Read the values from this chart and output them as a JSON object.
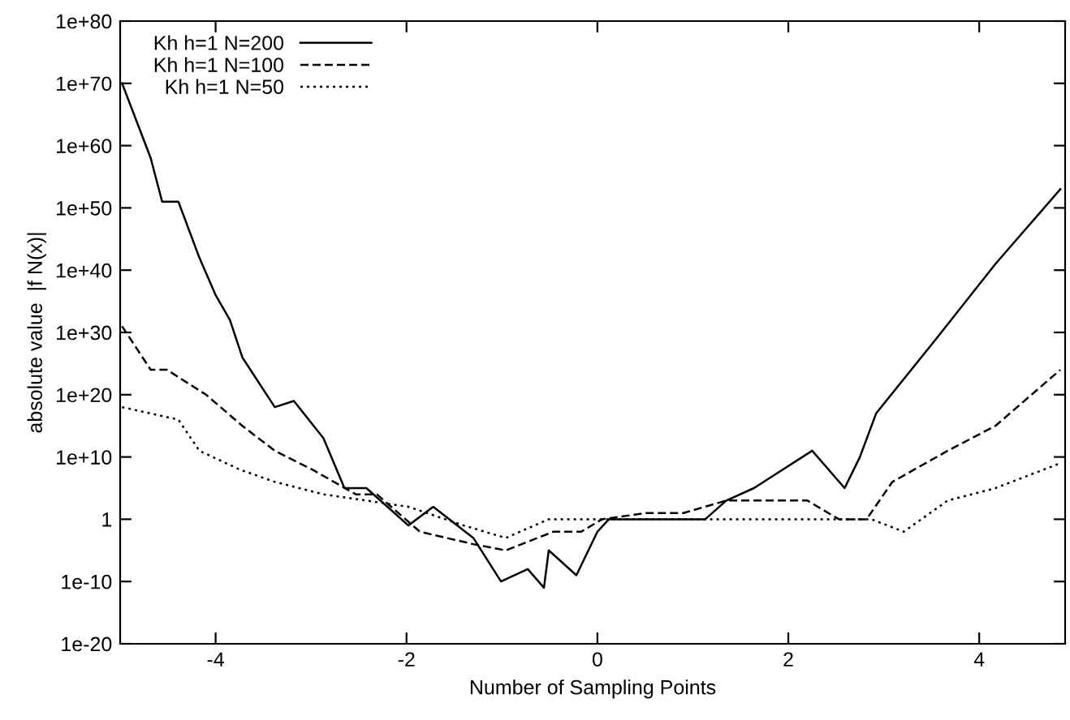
{
  "chart_data": {
    "type": "line",
    "xlabel": "Number of Sampling Points",
    "ylabel": "absolute value  |f N(x)|",
    "log": "y",
    "xlim": [
      -5,
      4.9
    ],
    "ylim": [
      1e-20,
      1e+80
    ],
    "xticks": [
      -4,
      -2,
      0,
      2,
      4
    ],
    "yticks": [
      {
        "value": 1e-20,
        "label": "1e-20"
      },
      {
        "value": 1e-10,
        "label": "1e-10"
      },
      {
        "value": 1,
        "label": "1"
      },
      {
        "value": 10000000000.0,
        "label": "1e+10"
      },
      {
        "value": 1e+20,
        "label": "1e+20"
      },
      {
        "value": 1e+30,
        "label": "1e+30"
      },
      {
        "value": 1e+40,
        "label": "1e+40"
      },
      {
        "value": 1e+50,
        "label": "1e+50"
      },
      {
        "value": 1e+60,
        "label": "1e+60"
      },
      {
        "value": 1e+70,
        "label": "1e+70"
      },
      {
        "value": 1e+80,
        "label": "1e+80"
      }
    ],
    "grid": false,
    "legend": "top left",
    "marker": "none",
    "series": [
      {
        "name": "Kh h=1 N=200",
        "color": "#000000",
        "line_style": "solid",
        "x": [
          -4.98,
          -4.68,
          -4.56,
          -4.39,
          -4.17,
          -4.0,
          -3.85,
          -3.72,
          -3.38,
          -3.18,
          -2.87,
          -2.65,
          -2.42,
          -2.2,
          -1.98,
          -1.72,
          -1.3,
          -1.01,
          -0.73,
          -0.56,
          -0.51,
          -0.22,
          0.0,
          0.12,
          1.13,
          1.35,
          1.64,
          2.25,
          2.59,
          2.75,
          2.92,
          3.55,
          4.17,
          4.85
        ],
        "values": [
          1e+70,
          1e+58,
          1e+51,
          1e+51,
          1e+42,
          1e+36,
          1e+32,
          1e+26,
          1e+18,
          1e+19,
          10000000000000.0,
          100000.0,
          100000.0,
          100.0,
          0.1,
          100.0,
          0.001,
          1e-10,
          1e-08,
          1e-11,
          1e-05,
          1e-09,
          0.01,
          1,
          1,
          1000.0,
          100000.0,
          100000000000.0,
          100000.0,
          10000000000.0,
          1e+17,
          1e+29,
          1e+41,
          1e+53
        ]
      },
      {
        "name": "Kh h=1 N=100",
        "color": "#000000",
        "line_style": "dashed",
        "x": [
          -4.98,
          -4.68,
          -4.51,
          -4.1,
          -3.72,
          -3.38,
          -2.99,
          -2.53,
          -2.31,
          -1.86,
          -1.3,
          -0.96,
          -0.46,
          -0.17,
          0.05,
          0.51,
          0.9,
          1.35,
          2.2,
          2.53,
          2.82,
          3.09,
          3.67,
          4.17,
          4.85
        ],
        "values": [
          1e+31,
          1e+24,
          1e+24,
          1e+20,
          1000000000000000.0,
          100000000000.0,
          100000000.0,
          10000.0,
          10000.0,
          0.01,
          0.0001,
          1e-05,
          0.01,
          0.01,
          1,
          10.0,
          10.0,
          1000.0,
          1000.0,
          1,
          1,
          1000000.0,
          100000000000.0,
          1000000000000000.0,
          1e+24
        ]
      },
      {
        "name": "Kh h=1 N=50",
        "color": "#000000",
        "line_style": "dotted",
        "x": [
          -4.98,
          -4.39,
          -4.17,
          -3.75,
          -3.38,
          -2.87,
          -2.42,
          -1.98,
          -1.4,
          -0.96,
          -0.51,
          -0.22,
          0.12,
          2.87,
          3.21,
          3.67,
          4.17,
          4.85
        ],
        "values": [
          1e+18,
          1e+16,
          100000000000.0,
          100000000.0,
          1000000.0,
          10000.0,
          1000.0,
          100.0,
          0.1,
          0.001,
          1,
          1,
          1,
          1,
          0.01,
          1000.0,
          100000.0,
          1000000000.0
        ]
      }
    ]
  }
}
